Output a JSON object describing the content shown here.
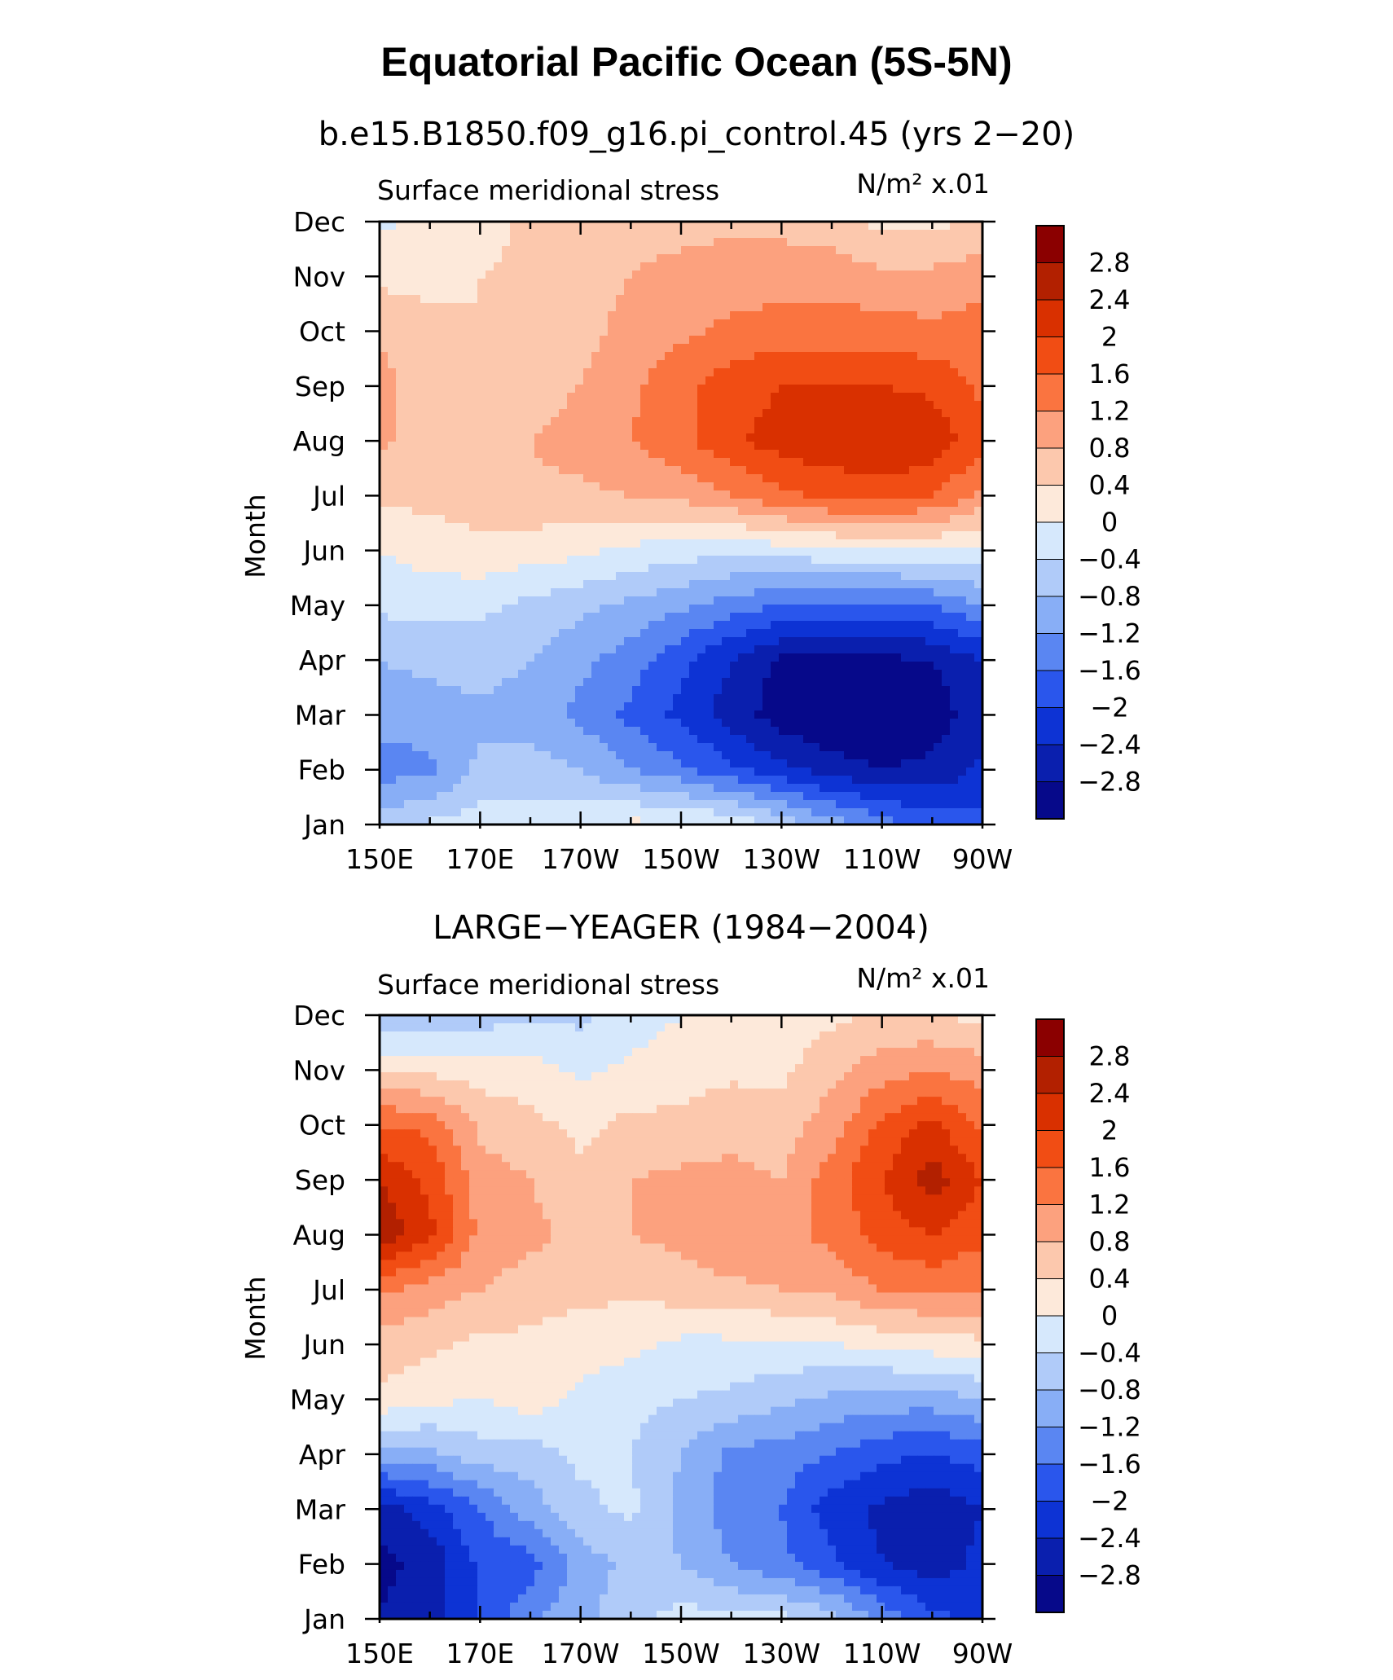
{
  "figure": {
    "title": "Equatorial Pacific Ocean (5S-5N)"
  },
  "chart_data": [
    {
      "type": "heatmap",
      "panel_title": "b.e15.B1850.f09_g16.pi_control.45 (yrs 2−20)",
      "variable_label": "Surface meridional stress",
      "units_label": "N/m² x.01",
      "ylabel": "Month",
      "x_tick_labels": [
        "150E",
        "170E",
        "170W",
        "150W",
        "130W",
        "110W",
        "90W"
      ],
      "y_tick_labels": [
        "Jan",
        "Feb",
        "Mar",
        "Apr",
        "May",
        "Jun",
        "Jul",
        "Aug",
        "Sep",
        "Oct",
        "Nov",
        "Dec"
      ],
      "x_lon": [
        150,
        160,
        170,
        180,
        190,
        200,
        210,
        220,
        230,
        240,
        250,
        260,
        270
      ],
      "z": [
        [
          -0.6,
          -0.3,
          -0.2,
          -0.2,
          -0.1,
          0.1,
          0.1,
          -0.1,
          -0.5,
          -1.0,
          -1.4,
          -1.8,
          -1.9
        ],
        [
          -1.4,
          -1.3,
          -0.7,
          -0.6,
          -0.8,
          -1.2,
          -1.5,
          -1.9,
          -2.3,
          -2.6,
          -2.8,
          -2.7,
          -2.3
        ],
        [
          -1.0,
          -1.0,
          -0.9,
          -1.0,
          -1.3,
          -1.7,
          -2.1,
          -2.6,
          -3.0,
          -3.2,
          -3.2,
          -3.0,
          -2.6
        ],
        [
          -0.8,
          -0.7,
          -0.6,
          -0.8,
          -1.1,
          -1.4,
          -1.9,
          -2.4,
          -2.9,
          -3.0,
          -2.9,
          -2.8,
          -2.4
        ],
        [
          -0.3,
          -0.3,
          -0.3,
          -0.5,
          -0.7,
          -0.9,
          -1.1,
          -1.4,
          -1.6,
          -1.7,
          -1.7,
          -1.6,
          -1.2
        ],
        [
          0.0,
          0.2,
          0.3,
          0.2,
          0.1,
          -0.1,
          -0.2,
          -0.3,
          -0.2,
          -0.1,
          -0.1,
          0.0,
          -0.1
        ],
        [
          0.5,
          0.5,
          0.6,
          0.7,
          0.7,
          0.8,
          0.9,
          1.2,
          1.5,
          1.7,
          1.8,
          1.6,
          1.1
        ],
        [
          0.9,
          0.6,
          0.7,
          0.8,
          1.0,
          1.2,
          1.5,
          1.9,
          2.2,
          2.3,
          2.4,
          2.3,
          1.7
        ],
        [
          1.0,
          0.5,
          0.5,
          0.6,
          0.8,
          1.1,
          1.5,
          1.8,
          2.0,
          2.0,
          2.0,
          1.9,
          1.5
        ],
        [
          0.7,
          0.5,
          0.4,
          0.5,
          0.7,
          0.9,
          1.1,
          1.3,
          1.4,
          1.4,
          1.4,
          1.3,
          1.4
        ],
        [
          0.3,
          0.3,
          0.4,
          0.5,
          0.7,
          0.8,
          0.9,
          1.0,
          1.0,
          1.0,
          0.9,
          0.9,
          1.0
        ],
        [
          -0.1,
          0.1,
          0.2,
          0.5,
          0.6,
          0.7,
          0.7,
          0.7,
          0.7,
          0.6,
          0.3,
          0.3,
          0.5
        ]
      ],
      "contour_levels": [
        -2.8,
        -2.4,
        -2,
        -1.6,
        -1.2,
        -0.8,
        -0.4,
        0,
        0.4,
        0.8,
        1.2,
        1.6,
        2,
        2.4,
        2.8
      ]
    },
    {
      "type": "heatmap",
      "panel_title": "LARGE−YEAGER (1984−2004)",
      "variable_label": "Surface meridional stress",
      "units_label": "N/m² x.01",
      "ylabel": "Month",
      "x_tick_labels": [
        "150E",
        "170E",
        "170W",
        "150W",
        "130W",
        "110W",
        "90W"
      ],
      "y_tick_labels": [
        "Jan",
        "Feb",
        "Mar",
        "Apr",
        "May",
        "Jun",
        "Jul",
        "Aug",
        "Sep",
        "Oct",
        "Nov",
        "Dec"
      ],
      "x_lon": [
        150,
        160,
        170,
        180,
        190,
        200,
        210,
        220,
        230,
        240,
        250,
        260,
        270
      ],
      "z": [
        [
          -2.8,
          -2.5,
          -2.0,
          -1.3,
          -0.9,
          -0.6,
          -0.2,
          -0.3,
          -0.3,
          -0.6,
          -1.3,
          -1.9,
          -2.1
        ],
        [
          -2.9,
          -2.7,
          -1.9,
          -1.8,
          -1.0,
          -0.7,
          -0.8,
          -1.2,
          -1.5,
          -1.9,
          -2.4,
          -2.6,
          -2.3
        ],
        [
          -2.6,
          -2.2,
          -1.6,
          -1.0,
          -0.5,
          -0.3,
          -0.9,
          -1.4,
          -1.6,
          -2.2,
          -2.5,
          -2.7,
          -2.4
        ],
        [
          -1.0,
          -0.9,
          -0.6,
          -0.6,
          -0.3,
          -0.4,
          -0.8,
          -1.3,
          -1.4,
          -1.6,
          -1.9,
          -2.0,
          -1.8
        ],
        [
          0.3,
          0.1,
          0.0,
          0.2,
          -0.1,
          -0.3,
          -0.4,
          -0.5,
          -0.7,
          -0.9,
          -1.0,
          -1.0,
          -0.8
        ],
        [
          0.6,
          0.5,
          0.3,
          0.3,
          0.2,
          0.1,
          -0.1,
          -0.1,
          -0.1,
          0.0,
          0.1,
          0.2,
          0.3
        ],
        [
          1.3,
          1.0,
          0.8,
          0.6,
          0.5,
          0.5,
          0.6,
          0.7,
          0.8,
          0.9,
          1.2,
          1.3,
          1.2
        ],
        [
          2.7,
          2.1,
          1.1,
          0.9,
          0.7,
          0.8,
          0.9,
          1.2,
          1.1,
          1.3,
          1.8,
          2.0,
          1.7
        ],
        [
          2.4,
          1.9,
          1.0,
          0.8,
          0.5,
          0.8,
          0.9,
          0.9,
          0.8,
          1.4,
          2.0,
          2.6,
          2.0
        ],
        [
          1.6,
          1.5,
          0.7,
          0.5,
          0.3,
          0.5,
          0.5,
          0.7,
          0.6,
          1.0,
          1.7,
          2.1,
          1.5
        ],
        [
          0.3,
          0.3,
          0.2,
          0.2,
          -0.1,
          0.1,
          0.2,
          0.3,
          0.3,
          0.7,
          1.0,
          1.2,
          1.0
        ],
        [
          -0.7,
          -0.6,
          -0.6,
          -0.5,
          -0.5,
          -0.2,
          0.0,
          0.1,
          0.1,
          0.3,
          0.5,
          0.4,
          0.3
        ]
      ],
      "contour_levels": [
        -2.8,
        -2.4,
        -2,
        -1.6,
        -1.2,
        -0.8,
        -0.4,
        0,
        0.4,
        0.8,
        1.2,
        1.6,
        2,
        2.4,
        2.8
      ]
    }
  ],
  "colorbar": {
    "labels": [
      "2.8",
      "2.4",
      "2",
      "1.6",
      "1.2",
      "0.8",
      "0.4",
      "0",
      "−0.4",
      "−0.8",
      "−1.2",
      "−1.6",
      "−2",
      "−2.4",
      "−2.8"
    ],
    "colors": [
      "#8b0000",
      "#b22000",
      "#d93000",
      "#f14d14",
      "#fa7440",
      "#fca17e",
      "#fcc8ad",
      "#fde9da",
      "#d6e8fc",
      "#b0cbf9",
      "#88aef6",
      "#5a86f2",
      "#2a56ec",
      "#0d33d4",
      "#0a1fae",
      "#06098a"
    ]
  }
}
